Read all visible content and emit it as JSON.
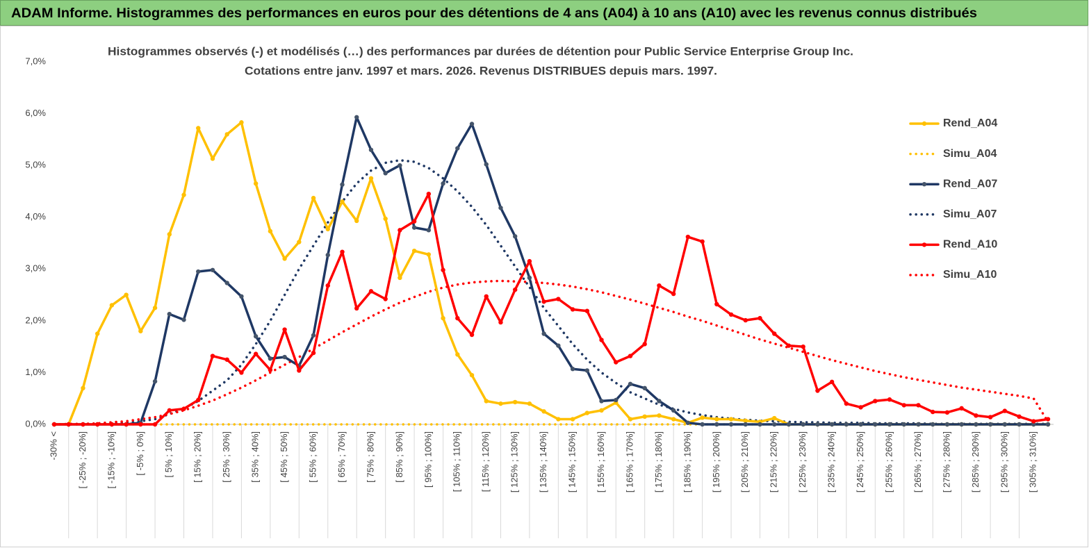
{
  "chart_data": {
    "type": "line",
    "title": "ADAM Informe. Histogrammes des performances en euros pour des détentions de 4 ans (A04) à 10 ans (A10) avec les revenus connus distribués",
    "subtitle": [
      "Histogrammes observés (-) et modélisés (…) des performances par durées de détention pour Public Service  Enterprise Group Inc.",
      "Cotations entre janv. 1997 et mars. 2026. Revenus DISTRIBUES depuis mars. 1997."
    ],
    "categories": [
      "-30% <",
      null,
      "[ -25% ; -20%]",
      null,
      "[ -15% ; -10%]",
      null,
      "[ -5% ; 0%]",
      null,
      "[ 5% ; 10%]",
      null,
      "[ 15% ; 20%]",
      null,
      "[ 25% ; 30%]",
      null,
      "[ 35% ; 40%]",
      null,
      "[ 45% ; 50%]",
      null,
      "[ 55% ; 60%]",
      null,
      "[ 65% ; 70%]",
      null,
      "[ 75% ; 80%]",
      null,
      "[ 85% ; 90%]",
      null,
      "[ 95% ; 100%]",
      null,
      "[ 105% ; 110%]",
      null,
      "[ 115% ; 120%]",
      null,
      "[ 125% ; 130%]",
      null,
      "[ 135% ; 140%]",
      null,
      "[ 145% ; 150%]",
      null,
      "[ 155% ; 160%]",
      null,
      "[ 165% ; 170%]",
      null,
      "[ 175% ; 180%]",
      null,
      "[ 185% ; 190%]",
      null,
      "[ 195% ; 200%]",
      null,
      "[ 205% ; 210%]",
      null,
      "[ 215% ; 220%]",
      null,
      "[ 225% ; 230%]",
      null,
      "[ 235% ; 240%]",
      null,
      "[ 245% ; 250%]",
      null,
      "[ 255% ; 260%]",
      null,
      "[ 265% ; 270%]",
      null,
      "[ 275% ; 280%]",
      null,
      "[ 285% ; 290%]",
      null,
      "[ 295% ; 300%]",
      null,
      "[ 305% ; 310%]",
      null
    ],
    "series": [
      {
        "name": "Rend_A04",
        "color": "#FFC000",
        "style": "solid",
        "markers": true,
        "values": [
          0,
          0,
          0.7,
          1.75,
          2.3,
          2.5,
          1.8,
          2.25,
          3.67,
          4.43,
          5.72,
          5.13,
          5.6,
          5.83,
          4.65,
          3.73,
          3.2,
          3.52,
          4.37,
          3.77,
          4.3,
          3.93,
          4.75,
          3.97,
          2.83,
          3.35,
          3.28,
          2.05,
          1.35,
          0.95,
          0.45,
          0.4,
          0.43,
          0.4,
          0.25,
          0.1,
          0.1,
          0.22,
          0.27,
          0.42,
          0.1,
          0.15,
          0.17,
          0.1,
          0.03,
          0.13,
          0.1,
          0.1,
          0.07,
          0.05,
          0.12,
          0,
          0,
          0,
          0,
          0,
          0,
          0,
          0,
          0,
          0,
          0,
          0,
          0,
          0,
          0,
          0,
          0,
          0,
          0
        ]
      },
      {
        "name": "Simu_A04",
        "color": "#FFC000",
        "style": "dotted",
        "markers": false,
        "values": [
          0,
          0,
          0,
          0,
          0,
          0,
          0,
          0,
          0,
          0,
          0,
          0,
          0,
          0,
          0,
          0,
          0,
          0,
          0,
          0,
          0,
          0,
          0,
          0,
          0,
          0,
          0,
          0,
          0,
          0,
          0,
          0,
          0,
          0,
          0,
          0,
          0,
          0,
          0,
          0,
          0,
          0,
          0,
          0,
          0,
          0,
          0,
          0,
          0,
          0,
          0,
          0,
          0,
          0,
          0,
          0,
          0,
          0,
          0,
          0,
          0,
          0,
          0,
          0,
          0,
          0,
          0,
          0,
          0,
          0
        ]
      },
      {
        "name": "Rend_A07",
        "color": "#1F3864",
        "style": "solid",
        "markers": true,
        "values": [
          0,
          0,
          0,
          0,
          0,
          0,
          0.03,
          0.83,
          2.13,
          2.02,
          2.95,
          2.98,
          2.73,
          2.47,
          1.7,
          1.27,
          1.3,
          1.13,
          1.72,
          3.27,
          4.63,
          5.93,
          5.3,
          4.85,
          5.0,
          3.8,
          3.75,
          4.65,
          5.33,
          5.8,
          5.02,
          4.18,
          3.63,
          2.83,
          1.75,
          1.52,
          1.07,
          1.04,
          0.45,
          0.47,
          0.78,
          0.7,
          0.45,
          0.27,
          0.03,
          0,
          0,
          0,
          0,
          0,
          0,
          0,
          0,
          0,
          0,
          0,
          0,
          0,
          0,
          0,
          0,
          0,
          0,
          0,
          0,
          0,
          0,
          0,
          0,
          0
        ]
      },
      {
        "name": "Simu_A07",
        "color": "#1F3864",
        "style": "dotted",
        "markers": false,
        "values": [
          0,
          0,
          0,
          0.01,
          0.02,
          0.03,
          0.06,
          0.1,
          0.2,
          0.3,
          0.45,
          0.65,
          0.85,
          1.15,
          1.55,
          2.0,
          2.5,
          3.0,
          3.45,
          3.9,
          4.3,
          4.65,
          4.9,
          5.05,
          5.1,
          5.07,
          4.95,
          4.75,
          4.5,
          4.2,
          3.85,
          3.45,
          3.05,
          2.65,
          2.25,
          1.9,
          1.55,
          1.25,
          1.0,
          0.8,
          0.62,
          0.5,
          0.38,
          0.3,
          0.23,
          0.18,
          0.14,
          0.11,
          0.09,
          0.07,
          0.06,
          0.05,
          0.04,
          0.04,
          0.03,
          0.03,
          0.03,
          0.02,
          0.02,
          0.02,
          0.02,
          0.01,
          0.01,
          0.01,
          0.01,
          0.01,
          0.01,
          0.01,
          0.01,
          0.01
        ]
      },
      {
        "name": "Rend_A10",
        "color": "#FF0000",
        "style": "solid",
        "markers": true,
        "values": [
          0,
          0,
          0,
          0,
          0,
          0,
          0,
          0,
          0.27,
          0.3,
          0.47,
          1.32,
          1.25,
          1.0,
          1.36,
          1.05,
          1.83,
          1.04,
          1.38,
          2.68,
          3.33,
          2.24,
          2.57,
          2.42,
          3.75,
          3.92,
          4.45,
          2.98,
          2.05,
          1.73,
          2.47,
          1.97,
          2.6,
          3.15,
          2.37,
          2.42,
          2.22,
          2.19,
          1.63,
          1.2,
          1.32,
          1.55,
          2.68,
          2.52,
          3.62,
          3.53,
          2.32,
          2.12,
          2.01,
          2.05,
          1.75,
          1.52,
          1.5,
          0.65,
          0.82,
          0.4,
          0.33,
          0.45,
          0.48,
          0.37,
          0.37,
          0.24,
          0.23,
          0.31,
          0.17,
          0.14,
          0.26,
          0.15,
          0.06,
          0.1
        ]
      },
      {
        "name": "Simu_A10",
        "color": "#FF0000",
        "style": "dotted",
        "markers": false,
        "values": [
          0,
          0.01,
          0.01,
          0.02,
          0.04,
          0.06,
          0.1,
          0.14,
          0.2,
          0.27,
          0.36,
          0.46,
          0.58,
          0.71,
          0.85,
          1.0,
          1.15,
          1.3,
          1.46,
          1.62,
          1.78,
          1.93,
          2.08,
          2.22,
          2.35,
          2.46,
          2.56,
          2.64,
          2.7,
          2.74,
          2.76,
          2.77,
          2.76,
          2.75,
          2.73,
          2.7,
          2.66,
          2.61,
          2.55,
          2.48,
          2.41,
          2.33,
          2.25,
          2.17,
          2.08,
          2.0,
          1.91,
          1.82,
          1.73,
          1.64,
          1.56,
          1.48,
          1.4,
          1.32,
          1.24,
          1.17,
          1.1,
          1.03,
          0.97,
          0.91,
          0.86,
          0.81,
          0.76,
          0.71,
          0.67,
          0.63,
          0.59,
          0.55,
          0.5,
          0.05
        ]
      }
    ],
    "ylim": [
      0,
      7
    ],
    "yticks": [
      {
        "value": 0,
        "label": "0,0%"
      },
      {
        "value": 1,
        "label": "1,0%"
      },
      {
        "value": 2,
        "label": "2,0%"
      },
      {
        "value": 3,
        "label": "3,0%"
      },
      {
        "value": 4,
        "label": "4,0%"
      },
      {
        "value": 5,
        "label": "5,0%"
      },
      {
        "value": 6,
        "label": "6,0%"
      },
      {
        "value": 7,
        "label": "7,0%"
      }
    ],
    "grid": false,
    "legend": "right"
  }
}
